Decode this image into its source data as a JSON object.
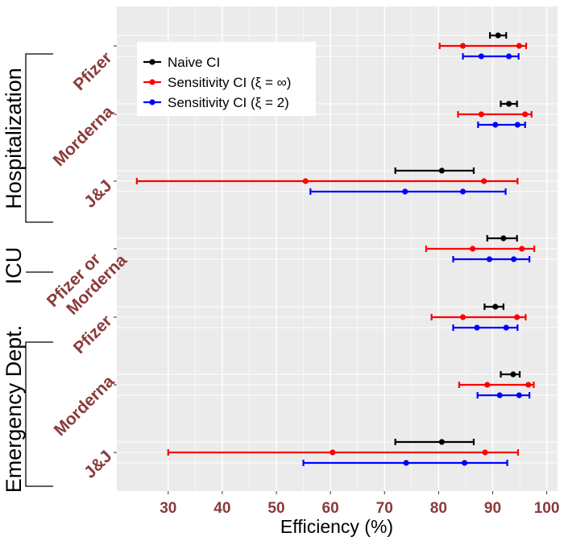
{
  "chart_data": {
    "type": "errorbar",
    "title": "",
    "xlabel": "Efficiency (%)",
    "xlim": [
      20.5,
      102
    ],
    "xticks": [
      30,
      40,
      50,
      60,
      70,
      80,
      90,
      100
    ],
    "grid": true,
    "legend_position": "top-left",
    "colors": {
      "panel": "#ebebeb",
      "grid": "#ffffff",
      "label": "#8b3a3a",
      "naive": "#000000",
      "xi_inf": "#ff0000",
      "xi_2": "#0000ff"
    },
    "legend": [
      {
        "key": "naive",
        "label": "Naive CI"
      },
      {
        "key": "xi_inf",
        "label": "Sensitivity CI (ξ = ∞)"
      },
      {
        "key": "xi_2",
        "label": "Sensitivity CI (ξ = 2)"
      }
    ],
    "groups": [
      {
        "label": "Hospitalization",
        "categories": [
          "Pfizer",
          "Morderna",
          "J&J"
        ]
      },
      {
        "label": "ICU",
        "categories": [
          "Pfizer or Morderna"
        ]
      },
      {
        "label": "Emergency Dept.",
        "categories": [
          "Pfizer",
          "Morderna",
          "J&J"
        ]
      }
    ],
    "rows": [
      {
        "category": "Pfizer",
        "group": "Hospitalization",
        "naive": {
          "low": 89.5,
          "high": 92.5,
          "points": [
            91.0
          ]
        },
        "xi_inf": {
          "low": 80.2,
          "high": 96.2,
          "points": [
            84.5,
            94.9
          ]
        },
        "xi_2": {
          "low": 84.5,
          "high": 94.8,
          "points": [
            87.9,
            93.0
          ]
        }
      },
      {
        "category": "Morderna",
        "group": "Hospitalization",
        "naive": {
          "low": 91.5,
          "high": 94.5,
          "points": [
            93.0
          ]
        },
        "xi_inf": {
          "low": 83.6,
          "high": 97.2,
          "points": [
            87.9,
            96.0
          ]
        },
        "xi_2": {
          "low": 87.3,
          "high": 96.0,
          "points": [
            90.5,
            94.6
          ]
        }
      },
      {
        "category": "J&J",
        "group": "Hospitalization",
        "naive": {
          "low": 72.0,
          "high": 86.5,
          "points": [
            80.6
          ]
        },
        "xi_inf": {
          "low": 24.2,
          "high": 94.6,
          "points": [
            55.4,
            88.4
          ]
        },
        "xi_2": {
          "low": 56.3,
          "high": 92.4,
          "points": [
            73.8,
            84.5
          ]
        }
      },
      {
        "category": "Pfizer or Morderna",
        "group": "ICU",
        "naive": {
          "low": 89.0,
          "high": 94.5,
          "points": [
            92.0
          ]
        },
        "xi_inf": {
          "low": 77.7,
          "high": 97.7,
          "points": [
            86.3,
            95.4
          ]
        },
        "xi_2": {
          "low": 82.7,
          "high": 96.8,
          "points": [
            89.4,
            93.9
          ]
        }
      },
      {
        "category": "Pfizer",
        "group": "Emergency Dept.",
        "naive": {
          "low": 88.5,
          "high": 92.0,
          "points": [
            90.5
          ]
        },
        "xi_inf": {
          "low": 78.7,
          "high": 96.1,
          "points": [
            84.5,
            94.5
          ]
        },
        "xi_2": {
          "low": 82.7,
          "high": 94.6,
          "points": [
            87.1,
            92.5
          ]
        }
      },
      {
        "category": "Morderna",
        "group": "Emergency Dept.",
        "naive": {
          "low": 91.5,
          "high": 95.0,
          "points": [
            93.8
          ]
        },
        "xi_inf": {
          "low": 83.8,
          "high": 97.6,
          "points": [
            89.0,
            96.6
          ]
        },
        "xi_2": {
          "low": 87.2,
          "high": 96.8,
          "points": [
            91.3,
            94.9
          ]
        }
      },
      {
        "category": "J&J",
        "group": "Emergency Dept.",
        "naive": {
          "low": 72.0,
          "high": 86.5,
          "points": [
            80.6
          ]
        },
        "xi_inf": {
          "low": 30.0,
          "high": 94.7,
          "points": [
            60.4,
            88.6
          ]
        },
        "xi_2": {
          "low": 55.0,
          "high": 92.7,
          "points": [
            74.0,
            84.8
          ]
        }
      }
    ]
  }
}
